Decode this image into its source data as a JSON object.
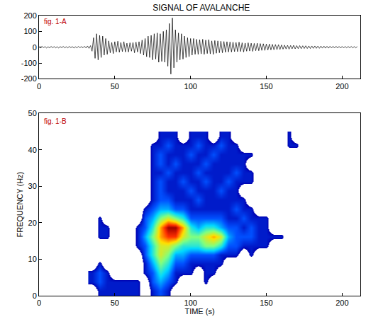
{
  "chart_data": [
    {
      "type": "line",
      "title": "SIGNAL OF AVALANCHE",
      "annotations": [
        "fig. 1-A"
      ],
      "color": "#000000",
      "x0": 0,
      "dx": 1,
      "values": [
        3,
        -4,
        5,
        -3,
        4,
        -5,
        3,
        -4,
        5,
        -3,
        4,
        -4,
        3,
        -5,
        4,
        -3,
        5,
        -4,
        3,
        -4,
        5,
        -3,
        4,
        -5,
        3,
        -4,
        5,
        -3,
        4,
        -4,
        6,
        -5,
        8,
        -7,
        10,
        -25,
        60,
        -70,
        85,
        -80,
        75,
        -65,
        70,
        -50,
        55,
        -45,
        40,
        -35,
        30,
        -40,
        35,
        -30,
        38,
        -32,
        30,
        -28,
        35,
        -30,
        25,
        -30,
        28,
        -25,
        30,
        -35,
        32,
        -30,
        35,
        -40,
        45,
        -50,
        55,
        -60,
        70,
        -65,
        75,
        -80,
        85,
        -75,
        90,
        -95,
        85,
        -90,
        100,
        -95,
        110,
        -120,
        150,
        -170,
        185,
        -130,
        110,
        -95,
        90,
        -80,
        85,
        -75,
        70,
        -65,
        60,
        -60,
        55,
        -50,
        55,
        -45,
        50,
        -45,
        48,
        -42,
        50,
        -45,
        45,
        -40,
        48,
        -42,
        40,
        -45,
        42,
        -38,
        40,
        -35,
        38,
        -35,
        36,
        -32,
        35,
        -30,
        33,
        -30,
        32,
        -28,
        30,
        -28,
        32,
        -27,
        28,
        -30,
        26,
        -25,
        28,
        -24,
        25,
        -26,
        24,
        -22,
        25,
        -22,
        23,
        -20,
        22,
        -20,
        20,
        -18,
        20,
        -17,
        18,
        -16,
        17,
        -15,
        16,
        -14,
        14,
        -12,
        13,
        -11,
        12,
        -12,
        11,
        -10,
        12,
        -10,
        10,
        -9,
        10,
        -9,
        9,
        -8,
        9,
        -8,
        8,
        -8,
        8,
        -7,
        8,
        -7,
        7,
        -7,
        7,
        -6,
        7,
        -6,
        6,
        -6,
        6,
        -5,
        6,
        -5,
        6,
        -5,
        5,
        -5,
        5,
        -5,
        5,
        -4,
        5,
        -4,
        5,
        -4,
        4,
        -4,
        4
      ],
      "xlim": [
        0,
        212
      ],
      "xticks": [
        0,
        50,
        100,
        150,
        200
      ],
      "ylim": [
        -200,
        200
      ],
      "yticks": [
        -200,
        -100,
        0,
        100,
        200
      ]
    },
    {
      "type": "heatmap",
      "annotations": [
        "fig. 1-B"
      ],
      "xlabel": "TIME (s)",
      "ylabel": "FREQUENCY (Hz)",
      "x0": 35,
      "dx": 5,
      "y0": 1.25,
      "dy": 2.5,
      "z_range": [
        0,
        10
      ],
      "z": [
        [
          0,
          2,
          2,
          2,
          2,
          2,
          2,
          0,
          2,
          3,
          2,
          0,
          0,
          0,
          0,
          0,
          0,
          0,
          0,
          0,
          0,
          0,
          0,
          0,
          0,
          0,
          0,
          0,
          0
        ],
        [
          2,
          3,
          2,
          2,
          2,
          2,
          2,
          0,
          3,
          4,
          3,
          2,
          0,
          0,
          0,
          2,
          0,
          0,
          0,
          0,
          0,
          0,
          0,
          0,
          0,
          0,
          0,
          0,
          0
        ],
        [
          2,
          3,
          2,
          0,
          0,
          0,
          0,
          2,
          3,
          5,
          4,
          2,
          2,
          2,
          0,
          2,
          2,
          0,
          0,
          0,
          0,
          0,
          0,
          0,
          0,
          0,
          0,
          0,
          0
        ],
        [
          0,
          2,
          0,
          0,
          0,
          0,
          0,
          2,
          4,
          6,
          5,
          3,
          3,
          2,
          2,
          2,
          2,
          2,
          0,
          0,
          0,
          0,
          0,
          0,
          0,
          0,
          0,
          0,
          0
        ],
        [
          0,
          0,
          0,
          0,
          0,
          0,
          0,
          3,
          5,
          7,
          6,
          4,
          4,
          3,
          3,
          3,
          3,
          2,
          2,
          2,
          0,
          2,
          0,
          0,
          0,
          0,
          0,
          0,
          0
        ],
        [
          0,
          0,
          0,
          0,
          0,
          0,
          2,
          3,
          5,
          7,
          7,
          6,
          5,
          5,
          5,
          6,
          6,
          5,
          3,
          3,
          2,
          2,
          2,
          2,
          0,
          0,
          0,
          0,
          0
        ],
        [
          0,
          2,
          2,
          0,
          0,
          0,
          2,
          4,
          6,
          8,
          9,
          9,
          7,
          6,
          6,
          7,
          8,
          7,
          4,
          3,
          3,
          3,
          2,
          2,
          2,
          2,
          0,
          0,
          0
        ],
        [
          0,
          2,
          2,
          0,
          0,
          0,
          2,
          3,
          5,
          8,
          10,
          10,
          8,
          5,
          4,
          5,
          5,
          4,
          3,
          3,
          2,
          3,
          2,
          2,
          0,
          0,
          0,
          0,
          0
        ],
        [
          0,
          2,
          0,
          0,
          0,
          0,
          0,
          3,
          4,
          6,
          7,
          6,
          5,
          3,
          3,
          3,
          3,
          3,
          2,
          2,
          3,
          2,
          2,
          2,
          0,
          0,
          0,
          0,
          0
        ],
        [
          0,
          0,
          0,
          0,
          0,
          0,
          0,
          2,
          3,
          4,
          4,
          3,
          3,
          2,
          2,
          2,
          2,
          2,
          2,
          3,
          2,
          2,
          0,
          0,
          0,
          0,
          0,
          0,
          0
        ],
        [
          0,
          0,
          0,
          0,
          0,
          0,
          0,
          0,
          2,
          3,
          3,
          2,
          2,
          2,
          3,
          2,
          2,
          2,
          2,
          2,
          2,
          0,
          0,
          0,
          0,
          0,
          0,
          0,
          0
        ],
        [
          0,
          0,
          0,
          0,
          0,
          0,
          0,
          0,
          2,
          3,
          2,
          2,
          2,
          3,
          2,
          2,
          2,
          3,
          2,
          2,
          0,
          0,
          0,
          0,
          0,
          0,
          0,
          0,
          0
        ],
        [
          0,
          0,
          0,
          0,
          0,
          0,
          0,
          0,
          2,
          3,
          2,
          2,
          3,
          2,
          2,
          3,
          2,
          2,
          3,
          2,
          2,
          2,
          0,
          0,
          0,
          0,
          0,
          0,
          0
        ],
        [
          0,
          0,
          0,
          0,
          0,
          0,
          0,
          0,
          2,
          2,
          3,
          2,
          2,
          2,
          3,
          2,
          2,
          2,
          2,
          3,
          2,
          2,
          0,
          0,
          0,
          0,
          0,
          0,
          0
        ],
        [
          0,
          0,
          0,
          0,
          0,
          0,
          0,
          0,
          2,
          3,
          2,
          3,
          2,
          2,
          2,
          3,
          2,
          2,
          2,
          2,
          2,
          0,
          0,
          0,
          0,
          0,
          0,
          0,
          0
        ],
        [
          0,
          0,
          0,
          0,
          0,
          0,
          0,
          0,
          2,
          3,
          2,
          2,
          2,
          3,
          2,
          2,
          3,
          2,
          2,
          2,
          2,
          2,
          0,
          0,
          0,
          0,
          0,
          0,
          0
        ],
        [
          0,
          0,
          0,
          0,
          0,
          0,
          0,
          0,
          2,
          2,
          3,
          2,
          2,
          2,
          3,
          2,
          2,
          3,
          2,
          2,
          0,
          0,
          0,
          0,
          0,
          0,
          2,
          2,
          0
        ],
        [
          0,
          0,
          0,
          0,
          0,
          0,
          0,
          0,
          0,
          2,
          2,
          2,
          0,
          2,
          2,
          2,
          0,
          2,
          2,
          0,
          0,
          0,
          0,
          0,
          0,
          0,
          2,
          0,
          0
        ]
      ],
      "xlim": [
        0,
        212
      ],
      "xticks": [
        0,
        50,
        100,
        150,
        200
      ],
      "ylim": [
        0,
        50
      ],
      "yticks": [
        0,
        10,
        20,
        30,
        40,
        50
      ]
    }
  ]
}
